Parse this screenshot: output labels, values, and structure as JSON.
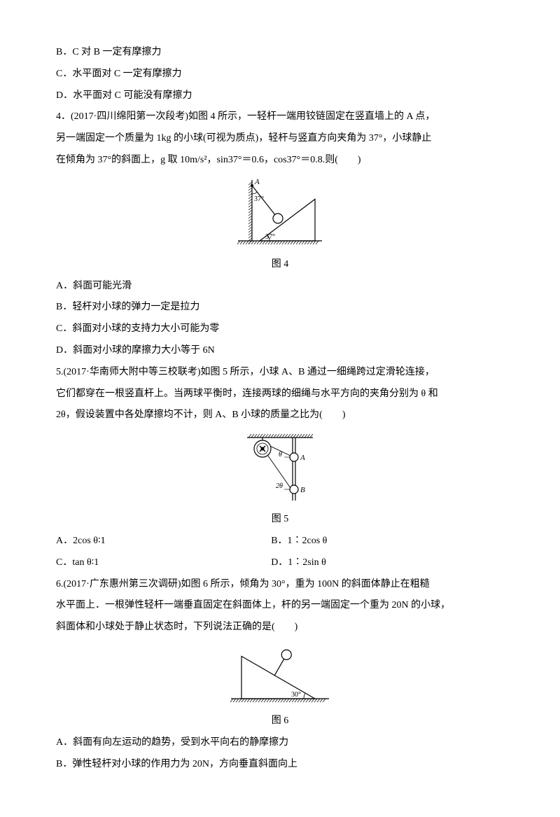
{
  "q3": {
    "optB": "B．C 对 B 一定有摩擦力",
    "optC": "C．水平面对 C 一定有摩擦力",
    "optD": "D．水平面对 C 可能没有摩擦力"
  },
  "q4": {
    "stem1": "4．(2017·四川绵阳第一次段考)如图 4 所示，一轻杆一端用铰链固定在竖直墙上的 A 点，",
    "stem2": "另一端固定一个质量为 1kg 的小球(可视为质点)，轻杆与竖直方向夹角为 37°，小球静止",
    "stem3": "在倾角为 37°的斜面上，g 取 10m/s²，sin37°＝0.6，cos37°＝0.8.则(　　)",
    "caption": "图 4",
    "labelA": "A",
    "angle_top": "37°",
    "angle_bottom": "37°",
    "optA": "A．斜面可能光滑",
    "optB": "B．轻杆对小球的弹力一定是拉力",
    "optC": "C．斜面对小球的支持力大小可能为零",
    "optD": "D．斜面对小球的摩擦力大小等于 6N"
  },
  "q5": {
    "stem1": "5.(2017·华南师大附中等三校联考)如图 5 所示，小球 A、B 通过一细绳跨过定滑轮连接，",
    "stem2": "它们都穿在一根竖直杆上。当两球平衡时，连接两球的细绳与水平方向的夹角分别为 θ 和",
    "stem3": "2θ，假设装置中各处摩擦均不计，则 A、B 小球的质量之比为(　　)",
    "caption": "图 5",
    "labelA": "A",
    "labelB": "B",
    "angle_top": "θ",
    "angle_bottom": "2θ",
    "optA": "A．2cos θ∶1",
    "optB": "B．1∶2cos θ",
    "optC": "C．tan θ∶1",
    "optD": "D．1∶2sin θ"
  },
  "q6": {
    "stem1": "6.(2017·广东惠州第三次调研)如图 6 所示，倾角为 30°，重为 100N 的斜面体静止在粗糙",
    "stem2": "水平面上．一根弹性轻杆一端垂直固定在斜面体上，杆的另一端固定一个重为 20N 的小球，",
    "stem3": "斜面体和小球处于静止状态时，下列说法正确的是(　　)",
    "caption": "图 6",
    "angle": "30°",
    "optA": "A．斜面有向左运动的趋势，受到水平向右的静摩擦力",
    "optB": "B．弹性轻杆对小球的作用力为 20N，方向垂直斜面向上"
  },
  "style": {
    "stroke": "#000000",
    "stroke_width": 1.2,
    "fill_none": "none",
    "fill_white": "#ffffff",
    "hatch_spacing": 4,
    "fig4_width": 130,
    "fig4_height": 110,
    "fig5_width": 110,
    "fig5_height": 110,
    "fig6_width": 150,
    "fig6_height": 95,
    "label_fontsize": 11
  }
}
